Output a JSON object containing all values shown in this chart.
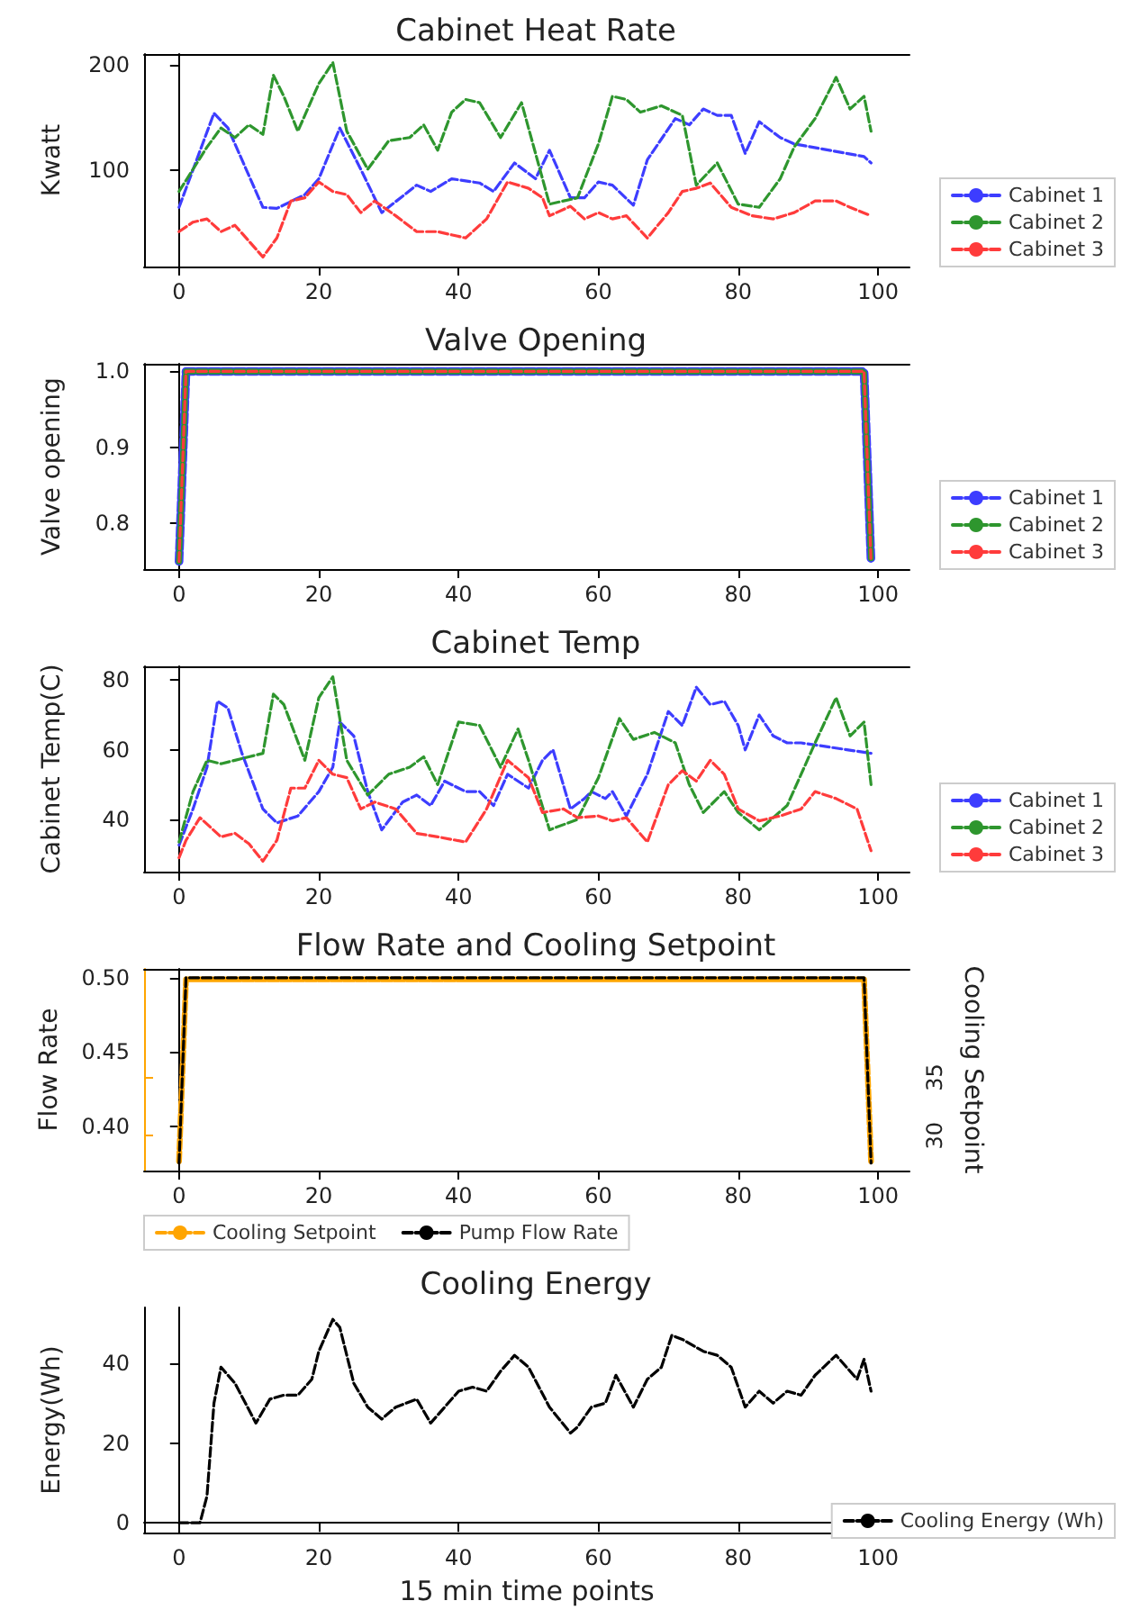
{
  "chart_data": [
    {
      "type": "line",
      "title": "Cabinet Heat Rate",
      "ylabel": "Kwatt",
      "xlim": [
        -5,
        104.5
      ],
      "xticks": [
        0,
        20,
        40,
        60,
        80,
        100
      ],
      "ylim": [
        9,
        210
      ],
      "yticks": [
        100,
        200
      ],
      "line_style": "dashed",
      "legend": "bottom right",
      "series": [
        {
          "name": "Cabinet 1",
          "color": "#3d3dff",
          "x": [
            0,
            5,
            7,
            12,
            14,
            18,
            20,
            23,
            26,
            29,
            34,
            36,
            39,
            43,
            45,
            48,
            51,
            53,
            56,
            58,
            60,
            62,
            65,
            67,
            71,
            73,
            75,
            77,
            79,
            81,
            83,
            86,
            88,
            98,
            99
          ],
          "values": [
            65,
            154,
            140,
            65,
            64,
            77,
            92,
            140,
            101,
            60,
            86,
            80,
            92,
            88,
            80,
            107,
            92,
            119,
            74,
            74,
            89,
            86,
            67,
            110,
            149,
            143,
            158,
            152,
            152,
            116,
            146,
            131,
            125,
            113,
            107
          ]
        },
        {
          "name": "Cabinet 2",
          "color": "#2e962e",
          "x": [
            0,
            2,
            4,
            6,
            8,
            10,
            12,
            13.5,
            15,
            17,
            20,
            22,
            24,
            27,
            30,
            33,
            35,
            37,
            39,
            41,
            43,
            46,
            49,
            51,
            53,
            57,
            60,
            62,
            64,
            66,
            69,
            72,
            74,
            77,
            80,
            83,
            86,
            88,
            91,
            94,
            96,
            98,
            99
          ],
          "values": [
            80,
            101,
            122,
            140,
            131,
            143,
            134,
            190,
            170,
            137,
            182,
            202,
            137,
            101,
            128,
            131,
            143,
            119,
            155,
            167,
            164,
            131,
            164,
            116,
            68,
            74,
            125,
            170,
            167,
            155,
            161,
            152,
            86,
            107,
            68,
            65,
            92,
            122,
            149,
            188,
            158,
            170,
            137
          ]
        },
        {
          "name": "Cabinet 3",
          "color": "#ff3b3b",
          "x": [
            0,
            2,
            4,
            6,
            8,
            10,
            12,
            14,
            16,
            18,
            20,
            22,
            24,
            26,
            28,
            31,
            34,
            37,
            41,
            44,
            47,
            50,
            52,
            53,
            56,
            58,
            60,
            62,
            64,
            67,
            70,
            72,
            74,
            76,
            79,
            82,
            85,
            88,
            91,
            94,
            96,
            99
          ],
          "values": [
            42,
            51,
            54,
            42,
            48,
            33,
            18,
            36,
            71,
            74,
            89,
            80,
            77,
            60,
            71,
            57,
            42,
            42,
            36,
            54,
            89,
            83,
            74,
            57,
            66,
            54,
            60,
            54,
            57,
            36,
            60,
            80,
            83,
            88,
            65,
            57,
            54,
            60,
            71,
            71,
            65,
            57
          ]
        }
      ]
    },
    {
      "type": "line",
      "title": "Valve Opening",
      "ylabel": "Valve opening",
      "xlim": [
        -5,
        104.5
      ],
      "xticks": [
        0,
        20,
        40,
        60,
        80,
        100
      ],
      "ylim": [
        0.74,
        1.01
      ],
      "yticks": [
        {
          "value": 0.8,
          "label": "0.8"
        },
        {
          "value": 0.9,
          "label": "0.9"
        },
        {
          "value": 1,
          "label": "1.0"
        }
      ],
      "line_style": "dashed",
      "legend": "bottom right",
      "series": [
        {
          "name": "Cabinet 1",
          "color": "#3d3dff",
          "x": [
            0,
            1,
            98,
            99
          ],
          "values": [
            0.75,
            1,
            1,
            0.75
          ]
        },
        {
          "name": "Cabinet 2",
          "color": "#2e962e",
          "x": [
            0,
            1,
            98,
            99
          ],
          "values": [
            0.75,
            1,
            1,
            0.75
          ]
        },
        {
          "name": "Cabinet 3",
          "color": "#ff3b3b",
          "x": [
            0,
            1,
            98,
            99
          ],
          "values": [
            0.75,
            1,
            1,
            0.75
          ]
        }
      ]
    },
    {
      "type": "line",
      "title": "Cabinet Temp",
      "ylabel": "Cabinet Temp(C)",
      "xlim": [
        -5,
        104.5
      ],
      "xticks": [
        0,
        20,
        40,
        60,
        80,
        100
      ],
      "ylim": [
        25,
        84
      ],
      "yticks": [
        40,
        60,
        80
      ],
      "line_style": "dashed",
      "legend": "bottom right",
      "series": [
        {
          "name": "Cabinet 1",
          "color": "#3d3dff",
          "x": [
            0,
            2,
            4,
            5.5,
            7,
            9,
            12,
            14,
            17,
            20,
            22,
            23,
            25,
            27,
            29,
            32,
            34,
            36,
            38,
            41,
            43,
            45,
            47,
            50,
            52,
            53.5,
            56,
            58,
            59,
            61,
            62,
            64,
            67,
            70,
            72,
            74,
            76,
            78,
            80,
            81,
            83,
            85,
            87,
            89,
            99
          ],
          "values": [
            32.6,
            43,
            55,
            74,
            72,
            59,
            43,
            39,
            41,
            48,
            55,
            68,
            64,
            48,
            37,
            45,
            47,
            44,
            51,
            48,
            48,
            44,
            53,
            49,
            57,
            60,
            43,
            46,
            48,
            46,
            48,
            41,
            53,
            71,
            67,
            78,
            73,
            74,
            67,
            60,
            70,
            64,
            62,
            62,
            59
          ]
        },
        {
          "name": "Cabinet 2",
          "color": "#2e962e",
          "x": [
            0,
            2,
            4,
            6,
            8,
            10,
            12,
            13.5,
            15,
            18,
            20,
            22,
            24,
            27,
            30,
            33,
            35,
            37,
            40,
            43,
            46,
            48.5,
            50,
            53,
            57,
            60,
            63,
            65,
            68,
            71,
            73,
            75,
            78,
            80,
            83,
            87,
            91,
            94,
            96,
            98,
            99
          ],
          "values": [
            33.5,
            48,
            57,
            56,
            57,
            58,
            59,
            76,
            73,
            57,
            75,
            81,
            57,
            47,
            53,
            55,
            58,
            50,
            68,
            67,
            55,
            66,
            57,
            37,
            40,
            52,
            69,
            63,
            65,
            62,
            50,
            42,
            48,
            42,
            37,
            44,
            62,
            75,
            64,
            68,
            50
          ]
        },
        {
          "name": "Cabinet 3",
          "color": "#ff3b3b",
          "x": [
            0,
            1,
            3,
            6,
            8,
            10,
            12,
            14,
            16,
            18,
            20,
            22,
            24,
            26,
            28,
            31,
            34,
            37,
            41,
            44,
            47,
            50,
            52,
            55,
            57,
            60,
            62,
            64,
            67,
            70,
            72,
            74,
            76,
            78,
            80,
            83,
            86,
            89,
            91,
            94,
            97,
            99
          ],
          "values": [
            29,
            34,
            40.5,
            35,
            36,
            33,
            28,
            34,
            49,
            49,
            57,
            53,
            52,
            43,
            45,
            43,
            36,
            35,
            33.5,
            43,
            57,
            52,
            42,
            43,
            40.5,
            41,
            39.6,
            40.5,
            33.5,
            50,
            54,
            51,
            57,
            53,
            43,
            39.6,
            41,
            43,
            48,
            46,
            43,
            31
          ]
        }
      ]
    },
    {
      "type": "line",
      "title": "Flow Rate and Cooling Setpoint",
      "ylabel": "Flow Rate",
      "y2label": "Cooling Setpoint",
      "xlim": [
        -5,
        104.5
      ],
      "xticks": [
        0,
        20,
        40,
        60,
        80,
        100
      ],
      "ylim": [
        0.37,
        0.506
      ],
      "yticks": [
        {
          "value": 0.4,
          "label": "0.40"
        },
        {
          "value": 0.45,
          "label": "0.45"
        },
        {
          "value": 0.5,
          "label": "0.50"
        }
      ],
      "y2lim": [
        27,
        44.3
      ],
      "y2ticks": [
        30,
        35
      ],
      "line_style": "dashed",
      "legend": "bottom left",
      "series": [
        {
          "name": "Cooling Setpoint",
          "color": "#ffa500",
          "axis": "y2",
          "x": [
            0,
            1,
            98,
            99
          ],
          "values": [
            27.8,
            43.4,
            43.4,
            27.8
          ]
        },
        {
          "name": "Pump Flow Rate",
          "color": "#000000",
          "x": [
            0,
            1,
            98,
            99
          ],
          "values": [
            0.375,
            0.5,
            0.5,
            0.375
          ]
        }
      ]
    },
    {
      "type": "line",
      "title": "Cooling Energy",
      "ylabel": "Energy(Wh)",
      "xlabel": "15 min time points",
      "xlim": [
        -5,
        104.5
      ],
      "xticks": [
        0,
        20,
        40,
        60,
        80,
        100
      ],
      "ylim": [
        -2.5,
        54
      ],
      "yticks": [
        0,
        20,
        40
      ],
      "line_style": "dashed",
      "legend": "bottom right",
      "series": [
        {
          "name": "Cooling Energy (Wh)",
          "color": "#000000",
          "x": [
            0,
            3,
            4,
            5,
            6,
            8,
            11,
            13,
            15,
            17,
            19,
            20,
            22,
            23,
            25,
            27,
            29,
            31,
            34,
            36,
            38,
            40,
            42,
            44,
            46,
            48,
            50,
            53,
            56,
            57,
            59,
            61,
            62.5,
            65,
            67,
            69,
            70.5,
            72,
            75,
            77,
            79,
            81,
            83,
            85,
            87,
            89,
            91,
            94,
            97,
            98,
            99
          ],
          "values": [
            0,
            0,
            6.7,
            30,
            39,
            35,
            25,
            31,
            32,
            32,
            36,
            43,
            51,
            49,
            35,
            29,
            26,
            29,
            31,
            25,
            29,
            33,
            34,
            33,
            38,
            42,
            39,
            29,
            22.5,
            24,
            29,
            30,
            37,
            29,
            36,
            39,
            47,
            46,
            43,
            42,
            39,
            29,
            33,
            30,
            33,
            32,
            37,
            42,
            36,
            41,
            33
          ]
        }
      ]
    }
  ]
}
